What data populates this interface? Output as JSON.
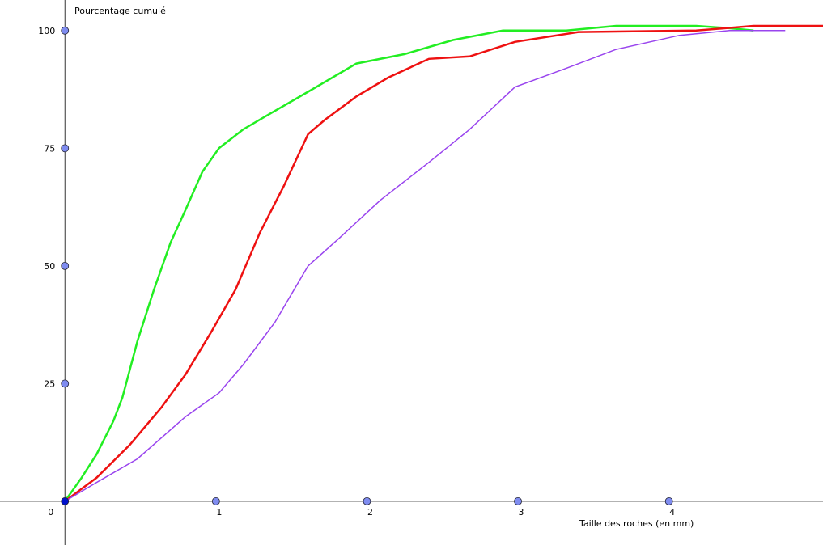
{
  "chart_data": {
    "type": "line",
    "x_label": "Taille des roches (en mm)",
    "y_label": "Pourcentage cumulé",
    "xlim": [
      -0.43,
      5.02
    ],
    "ylim": [
      -9.3,
      106.5
    ],
    "xticks": [
      0,
      1,
      2,
      3,
      4
    ],
    "yticks": [
      25,
      50,
      75,
      100
    ],
    "series": [
      {
        "color": "#22ee22",
        "x": [
          0,
          0.11,
          0.21,
          0.32,
          0.38,
          0.48,
          0.59,
          0.7,
          0.8,
          0.91,
          1.02,
          1.18,
          1.34,
          1.61,
          1.93,
          2.25,
          2.57,
          2.9,
          3.32,
          3.65,
          4.18,
          4.4,
          4.56
        ],
        "values": [
          0,
          5,
          10,
          17,
          22,
          34,
          45,
          55,
          62,
          70,
          75,
          79,
          82,
          87,
          93,
          95,
          98,
          100,
          100,
          101,
          101,
          100.5,
          100
        ]
      },
      {
        "color": "#ee1111",
        "x": [
          0,
          0.21,
          0.43,
          0.64,
          0.8,
          0.97,
          1.13,
          1.29,
          1.45,
          1.61,
          1.72,
          1.93,
          2.14,
          2.41,
          2.68,
          2.98,
          3.4,
          4.18,
          4.56,
          5.02
        ],
        "values": [
          0,
          5,
          12,
          20,
          27,
          36,
          45,
          57,
          67,
          78,
          81,
          86,
          90,
          94,
          94.5,
          97.6,
          99.7,
          100,
          101,
          101
        ]
      },
      {
        "color": "#9944ee",
        "x": [
          0,
          0.21,
          0.48,
          0.8,
          1.02,
          1.18,
          1.39,
          1.61,
          1.82,
          2.09,
          2.41,
          2.68,
          2.98,
          3.32,
          3.65,
          4.07,
          4.4,
          4.77
        ],
        "values": [
          0,
          4,
          9,
          18,
          23,
          29,
          38,
          50,
          56,
          64,
          72,
          79,
          88,
          92,
          96,
          99,
          100,
          100
        ]
      }
    ]
  }
}
